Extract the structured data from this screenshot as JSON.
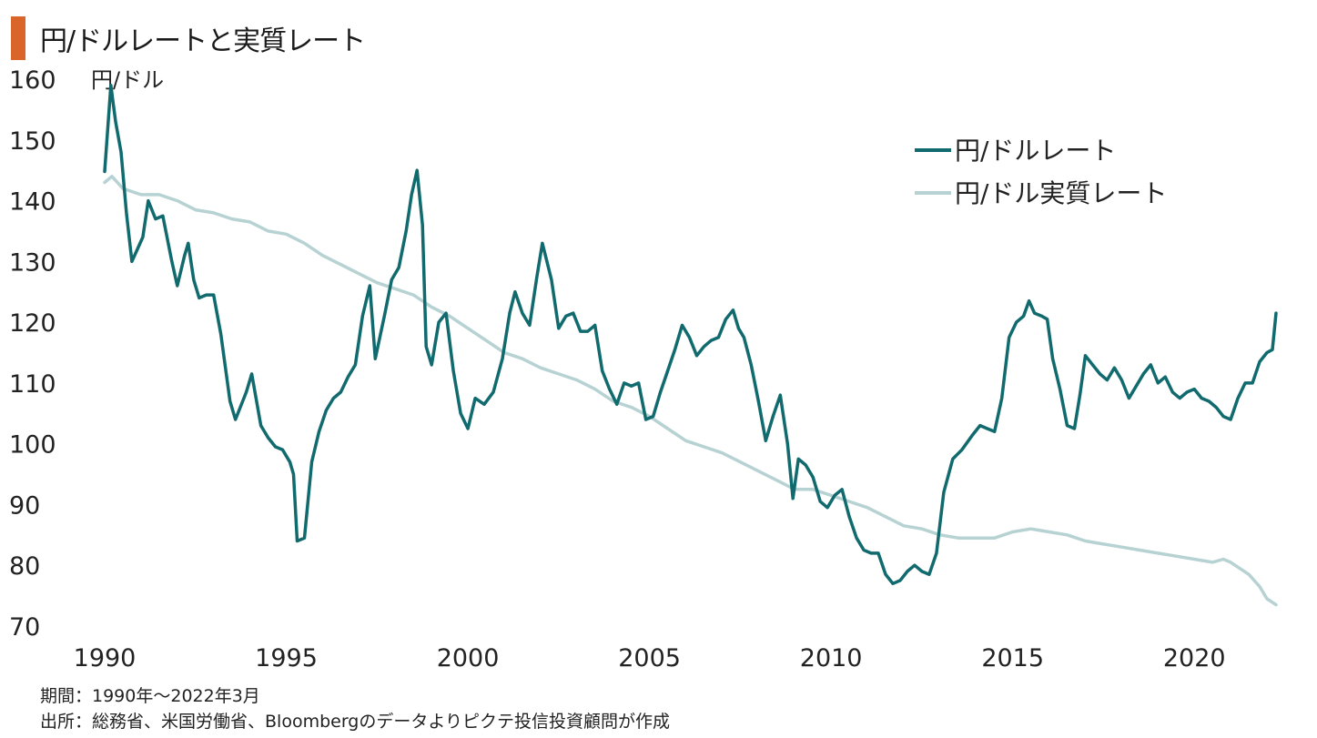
{
  "title": "円/ドルレートと実質レート",
  "colors": {
    "accent": "#d9652b",
    "nominal": "#106a6e",
    "real": "#b7d2d3"
  },
  "chart_data": {
    "type": "line",
    "title": "円/ドルレートと実質レート",
    "ylabel": "円/ドル",
    "xlabel": "",
    "xlim": [
      1990.0,
      2022.25
    ],
    "ylim": [
      70,
      160
    ],
    "x_ticks": [
      "1990",
      "1995",
      "2000",
      "2005",
      "2010",
      "2015",
      "2020"
    ],
    "y_ticks": [
      "160",
      "150",
      "140",
      "130",
      "120",
      "110",
      "100",
      "90",
      "80",
      "70"
    ],
    "legend_position": "top-right",
    "grid": false,
    "series": [
      {
        "name": "円/ドルレート",
        "color": "#106a6e",
        "points": [
          [
            1990.0,
            144.8
          ],
          [
            1990.17,
            159.0
          ],
          [
            1990.3,
            153.0
          ],
          [
            1990.45,
            148.0
          ],
          [
            1990.6,
            138.0
          ],
          [
            1990.75,
            130.0
          ],
          [
            1990.9,
            132.0
          ],
          [
            1991.05,
            134.0
          ],
          [
            1991.2,
            140.0
          ],
          [
            1991.4,
            137.0
          ],
          [
            1991.6,
            137.5
          ],
          [
            1991.85,
            130.0
          ],
          [
            1992.0,
            126.0
          ],
          [
            1992.2,
            131.0
          ],
          [
            1992.3,
            133.0
          ],
          [
            1992.45,
            127.0
          ],
          [
            1992.6,
            124.0
          ],
          [
            1992.8,
            124.5
          ],
          [
            1993.0,
            124.5
          ],
          [
            1993.2,
            118.0
          ],
          [
            1993.45,
            107.0
          ],
          [
            1993.6,
            104.0
          ],
          [
            1993.9,
            108.5
          ],
          [
            1994.05,
            111.5
          ],
          [
            1994.3,
            103.0
          ],
          [
            1994.5,
            101.0
          ],
          [
            1994.7,
            99.5
          ],
          [
            1994.9,
            99.0
          ],
          [
            1995.1,
            97.0
          ],
          [
            1995.2,
            95.0
          ],
          [
            1995.3,
            84.0
          ],
          [
            1995.5,
            84.5
          ],
          [
            1995.7,
            97.0
          ],
          [
            1995.9,
            102.0
          ],
          [
            1996.1,
            105.5
          ],
          [
            1996.3,
            107.5
          ],
          [
            1996.5,
            108.5
          ],
          [
            1996.7,
            111.0
          ],
          [
            1996.9,
            113.0
          ],
          [
            1997.1,
            121.0
          ],
          [
            1997.3,
            126.0
          ],
          [
            1997.45,
            114.0
          ],
          [
            1997.7,
            121.0
          ],
          [
            1997.9,
            127.0
          ],
          [
            1998.1,
            129.0
          ],
          [
            1998.3,
            135.0
          ],
          [
            1998.45,
            141.0
          ],
          [
            1998.6,
            145.0
          ],
          [
            1998.75,
            136.0
          ],
          [
            1998.85,
            116.0
          ],
          [
            1999.0,
            113.0
          ],
          [
            1999.2,
            120.0
          ],
          [
            1999.4,
            121.5
          ],
          [
            1999.6,
            112.0
          ],
          [
            1999.8,
            105.0
          ],
          [
            2000.0,
            102.5
          ],
          [
            2000.2,
            107.5
          ],
          [
            2000.45,
            106.5
          ],
          [
            2000.7,
            108.5
          ],
          [
            2000.95,
            114.0
          ],
          [
            2001.15,
            121.5
          ],
          [
            2001.3,
            125.0
          ],
          [
            2001.5,
            121.5
          ],
          [
            2001.7,
            119.5
          ],
          [
            2001.9,
            127.5
          ],
          [
            2002.05,
            133.0
          ],
          [
            2002.3,
            127.0
          ],
          [
            2002.5,
            119.0
          ],
          [
            2002.7,
            121.0
          ],
          [
            2002.9,
            121.5
          ],
          [
            2003.1,
            118.5
          ],
          [
            2003.3,
            118.5
          ],
          [
            2003.5,
            119.5
          ],
          [
            2003.7,
            112.0
          ],
          [
            2003.9,
            109.0
          ],
          [
            2004.1,
            106.5
          ],
          [
            2004.3,
            110.0
          ],
          [
            2004.5,
            109.5
          ],
          [
            2004.7,
            110.0
          ],
          [
            2004.9,
            104.0
          ],
          [
            2005.1,
            104.5
          ],
          [
            2005.3,
            108.5
          ],
          [
            2005.5,
            112.0
          ],
          [
            2005.7,
            115.5
          ],
          [
            2005.9,
            119.5
          ],
          [
            2006.1,
            117.5
          ],
          [
            2006.3,
            114.5
          ],
          [
            2006.5,
            116.0
          ],
          [
            2006.7,
            117.0
          ],
          [
            2006.9,
            117.5
          ],
          [
            2007.1,
            120.5
          ],
          [
            2007.3,
            122.0
          ],
          [
            2007.45,
            119.0
          ],
          [
            2007.6,
            117.5
          ],
          [
            2007.8,
            113.0
          ],
          [
            2008.0,
            107.0
          ],
          [
            2008.2,
            100.5
          ],
          [
            2008.4,
            104.5
          ],
          [
            2008.6,
            108.0
          ],
          [
            2008.8,
            100.0
          ],
          [
            2008.95,
            91.0
          ],
          [
            2009.1,
            97.5
          ],
          [
            2009.3,
            96.5
          ],
          [
            2009.5,
            94.5
          ],
          [
            2009.7,
            90.5
          ],
          [
            2009.9,
            89.5
          ],
          [
            2010.1,
            91.5
          ],
          [
            2010.3,
            92.5
          ],
          [
            2010.5,
            88.0
          ],
          [
            2010.7,
            84.5
          ],
          [
            2010.9,
            82.5
          ],
          [
            2011.1,
            82.0
          ],
          [
            2011.3,
            82.0
          ],
          [
            2011.5,
            78.5
          ],
          [
            2011.7,
            77.0
          ],
          [
            2011.9,
            77.5
          ],
          [
            2012.1,
            79.0
          ],
          [
            2012.3,
            80.0
          ],
          [
            2012.5,
            79.0
          ],
          [
            2012.7,
            78.5
          ],
          [
            2012.9,
            82.0
          ],
          [
            2013.1,
            92.0
          ],
          [
            2013.35,
            97.5
          ],
          [
            2013.6,
            99.0
          ],
          [
            2013.9,
            101.5
          ],
          [
            2014.1,
            103.0
          ],
          [
            2014.3,
            102.5
          ],
          [
            2014.5,
            102.0
          ],
          [
            2014.7,
            107.5
          ],
          [
            2014.9,
            117.5
          ],
          [
            2015.1,
            120.0
          ],
          [
            2015.3,
            121.0
          ],
          [
            2015.45,
            123.5
          ],
          [
            2015.6,
            121.5
          ],
          [
            2015.8,
            121.0
          ],
          [
            2015.95,
            120.5
          ],
          [
            2016.1,
            114.0
          ],
          [
            2016.3,
            109.0
          ],
          [
            2016.5,
            103.0
          ],
          [
            2016.7,
            102.5
          ],
          [
            2016.85,
            108.0
          ],
          [
            2017.0,
            114.5
          ],
          [
            2017.2,
            113.0
          ],
          [
            2017.4,
            111.5
          ],
          [
            2017.6,
            110.5
          ],
          [
            2017.8,
            112.5
          ],
          [
            2018.0,
            110.5
          ],
          [
            2018.2,
            107.5
          ],
          [
            2018.4,
            109.5
          ],
          [
            2018.6,
            111.5
          ],
          [
            2018.8,
            113.0
          ],
          [
            2019.0,
            110.0
          ],
          [
            2019.2,
            111.0
          ],
          [
            2019.4,
            108.5
          ],
          [
            2019.6,
            107.5
          ],
          [
            2019.8,
            108.5
          ],
          [
            2020.0,
            109.0
          ],
          [
            2020.2,
            107.5
          ],
          [
            2020.4,
            107.0
          ],
          [
            2020.6,
            106.0
          ],
          [
            2020.8,
            104.5
          ],
          [
            2021.0,
            104.0
          ],
          [
            2021.2,
            107.5
          ],
          [
            2021.4,
            110.0
          ],
          [
            2021.6,
            110.0
          ],
          [
            2021.8,
            113.5
          ],
          [
            2022.0,
            115.0
          ],
          [
            2022.15,
            115.5
          ],
          [
            2022.25,
            121.5
          ]
        ]
      },
      {
        "name": "円/ドル実質レート",
        "color": "#b7d2d3",
        "points": [
          [
            1990.0,
            143.0
          ],
          [
            1990.2,
            144.0
          ],
          [
            1990.5,
            142.0
          ],
          [
            1991.0,
            141.0
          ],
          [
            1991.5,
            141.0
          ],
          [
            1992.0,
            140.0
          ],
          [
            1992.5,
            138.5
          ],
          [
            1993.0,
            138.0
          ],
          [
            1993.5,
            137.0
          ],
          [
            1994.0,
            136.5
          ],
          [
            1994.5,
            135.0
          ],
          [
            1995.0,
            134.5
          ],
          [
            1995.5,
            133.0
          ],
          [
            1996.0,
            131.0
          ],
          [
            1996.5,
            129.5
          ],
          [
            1997.0,
            128.0
          ],
          [
            1997.5,
            126.5
          ],
          [
            1998.0,
            125.5
          ],
          [
            1998.5,
            124.5
          ],
          [
            1999.0,
            122.5
          ],
          [
            1999.5,
            121.0
          ],
          [
            2000.0,
            119.0
          ],
          [
            2000.5,
            117.0
          ],
          [
            2001.0,
            115.0
          ],
          [
            2001.5,
            114.0
          ],
          [
            2002.0,
            112.5
          ],
          [
            2002.5,
            111.5
          ],
          [
            2003.0,
            110.5
          ],
          [
            2003.5,
            109.0
          ],
          [
            2004.0,
            107.0
          ],
          [
            2004.5,
            106.0
          ],
          [
            2005.0,
            104.5
          ],
          [
            2005.5,
            102.5
          ],
          [
            2006.0,
            100.5
          ],
          [
            2006.5,
            99.5
          ],
          [
            2007.0,
            98.5
          ],
          [
            2007.5,
            97.0
          ],
          [
            2008.0,
            95.5
          ],
          [
            2008.5,
            94.0
          ],
          [
            2009.0,
            92.5
          ],
          [
            2009.5,
            92.5
          ],
          [
            2010.0,
            91.5
          ],
          [
            2010.5,
            90.5
          ],
          [
            2011.0,
            89.5
          ],
          [
            2011.5,
            88.0
          ],
          [
            2012.0,
            86.5
          ],
          [
            2012.5,
            86.0
          ],
          [
            2013.0,
            85.0
          ],
          [
            2013.5,
            84.5
          ],
          [
            2014.0,
            84.5
          ],
          [
            2014.5,
            84.5
          ],
          [
            2015.0,
            85.5
          ],
          [
            2015.5,
            86.0
          ],
          [
            2016.0,
            85.5
          ],
          [
            2016.5,
            85.0
          ],
          [
            2017.0,
            84.0
          ],
          [
            2017.5,
            83.5
          ],
          [
            2018.0,
            83.0
          ],
          [
            2018.5,
            82.5
          ],
          [
            2019.0,
            82.0
          ],
          [
            2019.5,
            81.5
          ],
          [
            2020.0,
            81.0
          ],
          [
            2020.5,
            80.5
          ],
          [
            2020.8,
            81.0
          ],
          [
            2021.0,
            80.5
          ],
          [
            2021.5,
            78.5
          ],
          [
            2021.8,
            76.5
          ],
          [
            2022.0,
            74.5
          ],
          [
            2022.25,
            73.5
          ]
        ]
      }
    ]
  },
  "footnotes": {
    "period": "期間：1990年～2022年3月",
    "source": "出所：総務省、米国労働省、Bloombergのデータよりピクテ投信投資顧問が作成"
  }
}
